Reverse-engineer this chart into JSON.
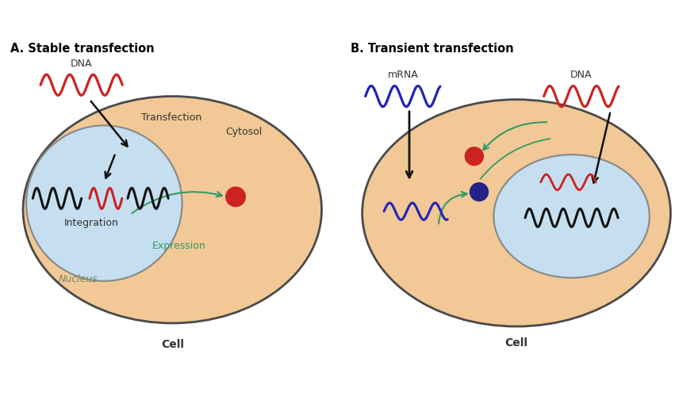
{
  "bg_color": "#ffffff",
  "cell_color": "#f2c896",
  "cell_edge_color": "#4a4a4a",
  "nucleus_color": "#c5dff0",
  "nucleus_edge_color": "#888888",
  "dna_color": "#cc2222",
  "mrna_color": "#2222bb",
  "black_wave_color": "#111111",
  "red_dot_color": "#cc2222",
  "blue_dot_color": "#222288",
  "green_arrow_color": "#339966",
  "black_arrow_color": "#111111",
  "text_color": "#333333",
  "title_A": "A. Stable transfection",
  "title_B": "B. Transient transfection",
  "label_cell": "Cell",
  "label_nucleus": "Nucleus",
  "label_cytosol": "Cytosol",
  "label_integration": "Integration",
  "label_expression": "Expression",
  "label_transfection": "Transfection",
  "label_dna_A": "DNA",
  "label_dna_B": "DNA",
  "label_mrna_B": "mRNA"
}
